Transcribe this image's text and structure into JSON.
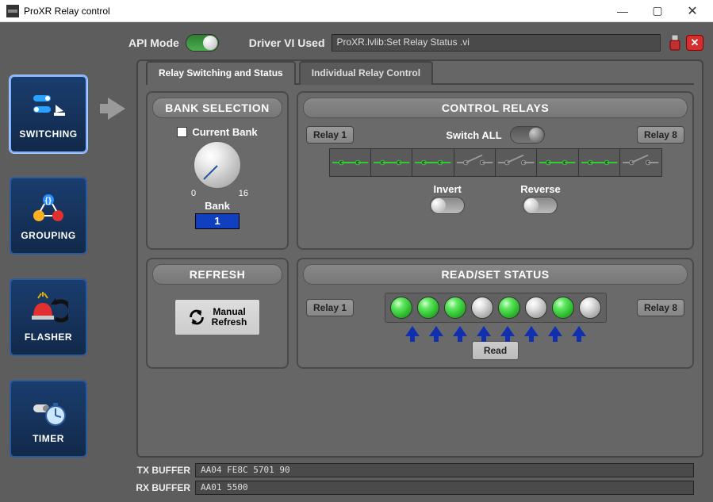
{
  "window": {
    "title": "ProXR Relay control"
  },
  "top": {
    "api_mode_label": "API Mode",
    "api_mode_on": true,
    "driver_label": "Driver VI Used",
    "driver_value": "ProXR.lvlib:Set Relay Status .vi"
  },
  "sidebar": {
    "items": [
      {
        "label": "SWITCHING",
        "selected": true
      },
      {
        "label": "GROUPING",
        "selected": false
      },
      {
        "label": "FLASHER",
        "selected": false
      },
      {
        "label": "TIMER",
        "selected": false
      }
    ]
  },
  "tabs": {
    "items": [
      {
        "label": "Relay Switching and Status",
        "active": true
      },
      {
        "label": "Individual Relay Control",
        "active": false
      }
    ]
  },
  "bank": {
    "header": "BANK SELECTION",
    "checkbox_label": "Current Bank",
    "dial_min": "0",
    "dial_max": "16",
    "bank_label": "Bank",
    "bank_value": "1"
  },
  "control": {
    "header": "CONTROL RELAYS",
    "relay1": "Relay 1",
    "relay8": "Relay 8",
    "switch_all_label": "Switch ALL",
    "invert_label": "Invert",
    "reverse_label": "Reverse",
    "relays_closed": [
      true,
      true,
      true,
      false,
      false,
      true,
      true,
      false
    ],
    "relay_on_color": "#30d030",
    "relay_off_color": "#9a9a9a"
  },
  "refresh": {
    "header": "REFRESH",
    "btn_line1": "Manual",
    "btn_line2": "Refresh"
  },
  "status": {
    "header": "READ/SET STATUS",
    "relay1": "Relay 1",
    "relay8": "Relay 8",
    "leds": [
      "green",
      "green",
      "green",
      "off",
      "green",
      "off",
      "green",
      "off"
    ],
    "read_label": "Read"
  },
  "buffers": {
    "tx_label": "TX BUFFER",
    "tx_value": "AA04 FE8C 5701 90",
    "rx_label": "RX BUFFER",
    "rx_value": "AA01 5500"
  },
  "colors": {
    "nav_bg": "#163761",
    "panel_bg": "#6a6a6a",
    "app_bg": "#5d5d5d",
    "accent_blue": "#1040c0",
    "arrow_blue": "#1030b0"
  }
}
